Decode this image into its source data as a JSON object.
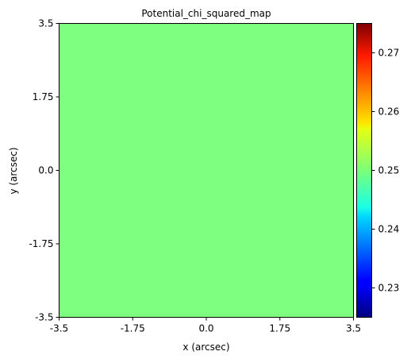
{
  "chart_data": {
    "type": "heatmap",
    "title": "Potential_chi_squared_map",
    "xlabel": "x (arcsec)",
    "ylabel": "y (arcsec)",
    "xlim": [
      -3.5,
      3.5
    ],
    "ylim": [
      -3.5,
      3.5
    ],
    "x_ticks": [
      -3.5,
      -1.75,
      0.0,
      1.75,
      3.5
    ],
    "x_tick_labels": [
      "-3.5",
      "-1.75",
      "0.0",
      "1.75",
      "3.5"
    ],
    "y_ticks": [
      -3.5,
      -1.75,
      0.0,
      1.75,
      3.5
    ],
    "y_tick_labels": [
      "-3.5",
      "-1.75",
      "0.0",
      "1.75",
      "3.5"
    ],
    "values": [
      [
        0.25
      ]
    ],
    "colorbar": {
      "colormap": "jet",
      "range": [
        0.225,
        0.275
      ],
      "ticks": [
        0.23,
        0.24,
        0.25,
        0.26,
        0.27
      ],
      "tick_labels": [
        "0.23",
        "0.24",
        "0.25",
        "0.26",
        "0.27"
      ]
    },
    "grid": false
  }
}
